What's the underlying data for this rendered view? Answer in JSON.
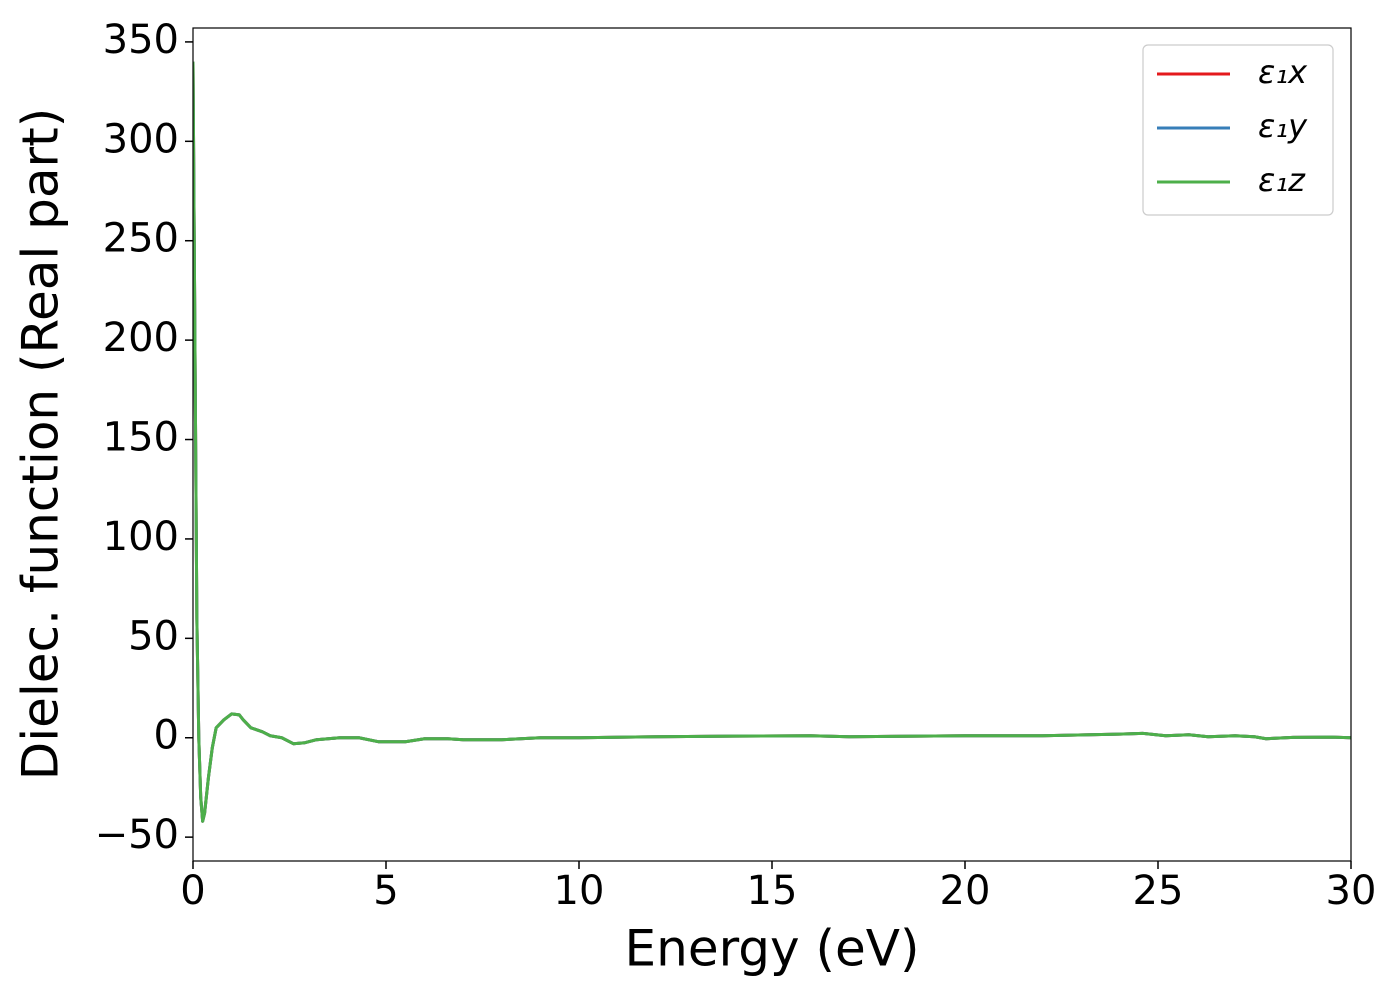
{
  "chart_data": {
    "type": "line",
    "xlabel": "Energy (eV)",
    "ylabel": "Dielec. function (Real part)",
    "xlim": [
      0,
      30
    ],
    "ylim": [
      -62,
      357
    ],
    "xticks": [
      0,
      5,
      10,
      15,
      20,
      25,
      30
    ],
    "yticks": [
      {
        "value": -50,
        "label": "−50"
      },
      0,
      50,
      100,
      150,
      200,
      250,
      300,
      350
    ],
    "legend": "upper right",
    "x": [
      0,
      0.05,
      0.1,
      0.15,
      0.2,
      0.25,
      0.3,
      0.4,
      0.5,
      0.6,
      0.8,
      1.0,
      1.2,
      1.3,
      1.5,
      1.8,
      2.0,
      2.3,
      2.6,
      2.9,
      3.2,
      3.8,
      4.3,
      4.8,
      5.5,
      6.0,
      6.6,
      7.0,
      8.0,
      9.0,
      10,
      12,
      14,
      16,
      17,
      20,
      22,
      24,
      24.6,
      25.2,
      25.8,
      26.3,
      27.0,
      27.5,
      27.8,
      28.5,
      29.5,
      30
    ],
    "series": [
      {
        "name": "ε₁x",
        "color": "#e41a1c",
        "values": [
          340,
          200,
          60,
          0,
          -30,
          -42,
          -38,
          -20,
          -5,
          5,
          9,
          12,
          11.5,
          9,
          5,
          3,
          1,
          0,
          -3,
          -2.5,
          -1,
          0,
          0,
          -2,
          -2,
          -0.5,
          -0.5,
          -1,
          -1,
          0,
          0,
          0.5,
          0.8,
          1,
          0.5,
          1,
          1,
          1.8,
          2.2,
          1,
          1.5,
          0.5,
          1,
          0.5,
          -0.5,
          0.2,
          0.3,
          0
        ]
      },
      {
        "name": "ε₁y",
        "color": "#377eb8",
        "values": [
          340,
          200,
          60,
          0,
          -30,
          -42,
          -38,
          -20,
          -5,
          5,
          9,
          12,
          11.5,
          9,
          5,
          3,
          1,
          0,
          -3,
          -2.5,
          -1,
          0,
          0,
          -2,
          -2,
          -0.5,
          -0.5,
          -1,
          -1,
          0,
          0,
          0.5,
          0.8,
          1,
          0.5,
          1,
          1,
          1.8,
          2.2,
          1,
          1.5,
          0.5,
          1,
          0.5,
          -0.5,
          0.2,
          0.3,
          0
        ]
      },
      {
        "name": "ε₁z",
        "color": "#4daf4a",
        "values": [
          340,
          200,
          60,
          0,
          -30,
          -42,
          -38,
          -20,
          -5,
          5,
          9,
          12,
          11.5,
          9,
          5,
          3,
          1,
          0,
          -3,
          -2.5,
          -1,
          0,
          0,
          -2,
          -2,
          -0.5,
          -0.5,
          -1,
          -1,
          0,
          0,
          0.5,
          0.8,
          1,
          0.5,
          1,
          1,
          1.8,
          2.2,
          1,
          1.5,
          0.5,
          1,
          0.5,
          -0.5,
          0.2,
          0.3,
          0
        ]
      }
    ]
  }
}
